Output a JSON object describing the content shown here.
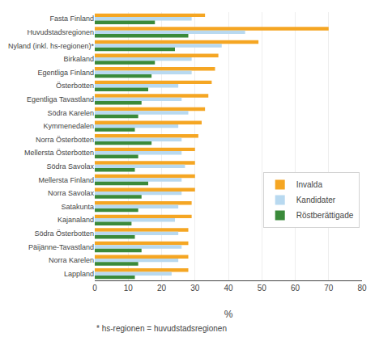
{
  "chart_data": {
    "type": "bar",
    "orientation": "horizontal",
    "categories": [
      "Fasta Finland",
      "Huvudstadsregionen",
      "Nyland (inkl. hs-regionen)*",
      "Birkaland",
      "Egentliga Finland",
      "Österbotten",
      "Egentliga Tavastland",
      "Södra Karelen",
      "Kymmenedalen",
      "Norra Österbotten",
      "Mellersta Österbotten",
      "Södra Savolax",
      "Mellersta Finland",
      "Norra Savolax",
      "Satakunta",
      "Kajanaland",
      "Södra Österbotten",
      "Päijänne-Tavastland",
      "Norra Karelen",
      "Lappland"
    ],
    "series": [
      {
        "name": "Invalda",
        "color": "#f5a623",
        "values": [
          33,
          70,
          49,
          37,
          36,
          35,
          34,
          33,
          32,
          31,
          30,
          30,
          30,
          30,
          29,
          29,
          28,
          28,
          28,
          28
        ]
      },
      {
        "name": "Kandidater",
        "color": "#b8d9f0",
        "values": [
          29,
          45,
          38,
          29,
          29,
          25,
          26,
          28,
          25,
          26,
          26,
          27,
          26,
          26,
          25,
          24,
          25,
          26,
          25,
          23
        ]
      },
      {
        "name": "Röstberättigade",
        "color": "#3a8a3a",
        "values": [
          18,
          28,
          24,
          18,
          17,
          16,
          14,
          13,
          12,
          17,
          13,
          12,
          16,
          14,
          13,
          11,
          12,
          14,
          13,
          12
        ]
      }
    ],
    "xlabel": "%",
    "xlim": [
      0,
      80
    ],
    "xticks": [
      0,
      10,
      20,
      30,
      40,
      50,
      60,
      70,
      80
    ],
    "grid": true,
    "legend": "right",
    "annotations": [
      "* hs-regionen = huvudstadsregionen"
    ]
  }
}
